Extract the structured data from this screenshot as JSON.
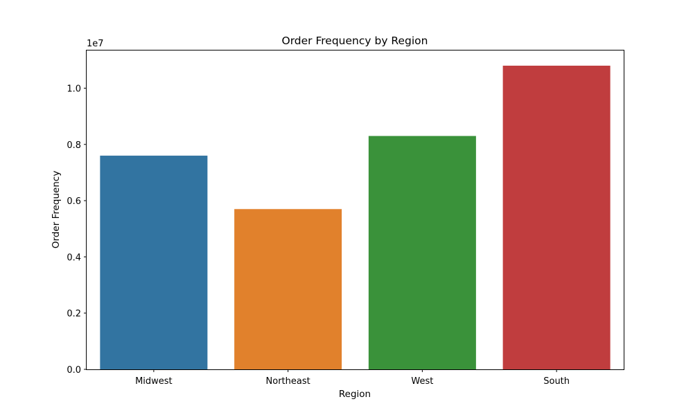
{
  "chart_data": {
    "type": "bar",
    "title": "Order Frequency by Region",
    "xlabel": "Region",
    "ylabel": "Order Frequency",
    "categories": [
      "Midwest",
      "Northeast",
      "West",
      "South"
    ],
    "values": [
      7600000,
      5700000,
      8300000,
      10800000
    ],
    "colors": [
      "#3274a1",
      "#e1812c",
      "#3a923a",
      "#c03d3e"
    ],
    "ylim": [
      0,
      11340000
    ],
    "y_scale_factor": 10000000,
    "y_offset_label": "1e7",
    "y_ticks": [
      0,
      2000000,
      4000000,
      6000000,
      8000000,
      10000000
    ],
    "y_tick_labels": [
      "0.0",
      "0.2",
      "0.4",
      "0.6",
      "0.8",
      "1.0"
    ],
    "grid": false,
    "legend": false
  }
}
